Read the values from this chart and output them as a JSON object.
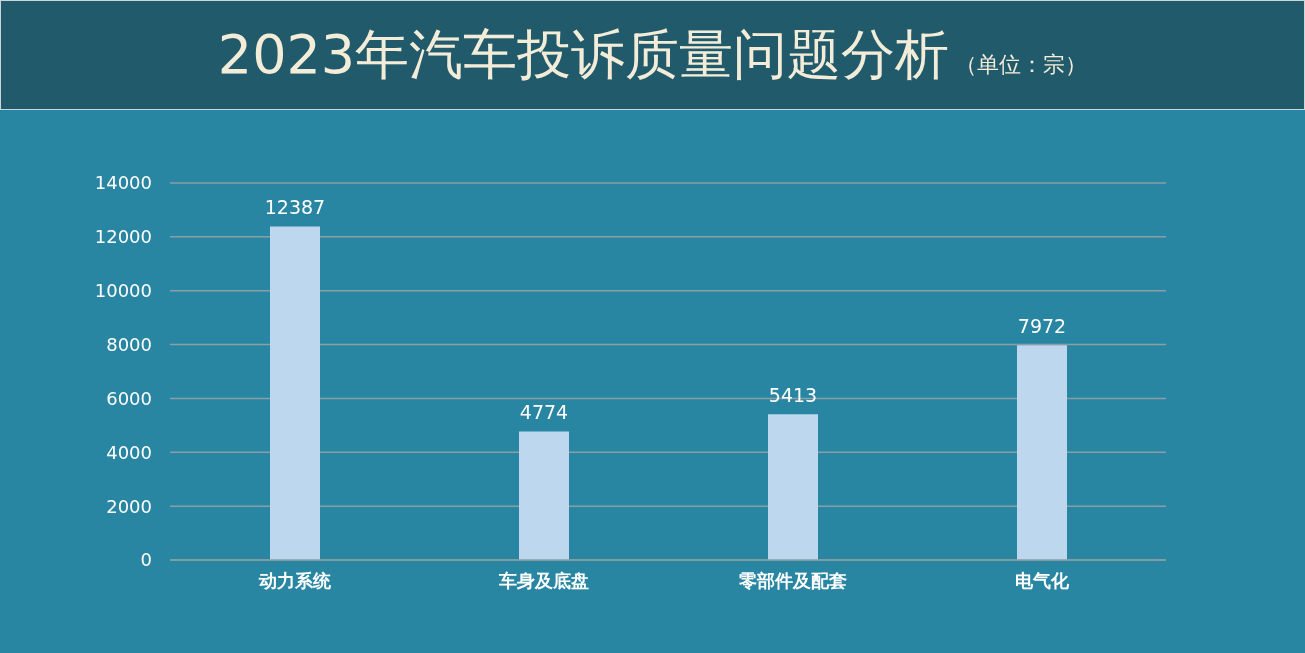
{
  "chart_data": {
    "type": "bar",
    "title": "2023年汽车投诉质量问题分析",
    "subtitle": "（单位：宗）",
    "categories": [
      "动力系统",
      "车身及底盘",
      "零部件及配套",
      "电气化"
    ],
    "values": [
      12387,
      4774,
      5413,
      7972
    ],
    "color": "#bdd7ee",
    "ylim": [
      0,
      14000
    ],
    "yticks": [
      0,
      2000,
      4000,
      6000,
      8000,
      10000,
      12000,
      14000
    ],
    "grid": "y",
    "data_labels": true
  }
}
